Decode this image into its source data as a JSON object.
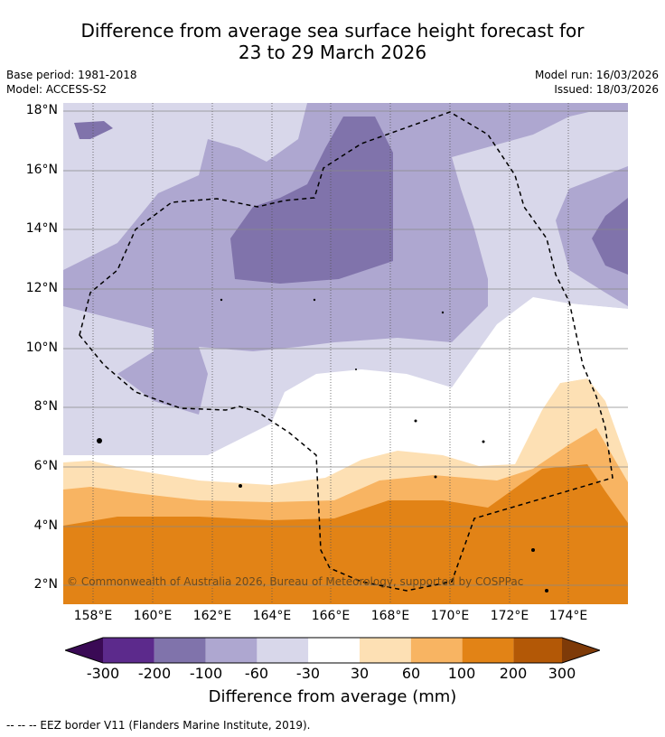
{
  "header": {
    "title_line1": "Difference from average sea surface height forecast for",
    "title_line2": "23 to 29 March 2026"
  },
  "meta": {
    "base_period": "Base period: 1981-2018",
    "model": "Model: ACCESS-S2",
    "model_run": "Model run: 16/03/2026",
    "issued": "Issued: 18/03/2026"
  },
  "map": {
    "copyright": "© Commonwealth of Australia 2026, Bureau of Meteorology, supported by COSPPac",
    "lat_labels": [
      "18°N",
      "16°N",
      "14°N",
      "12°N",
      "10°N",
      "8°N",
      "6°N",
      "4°N",
      "2°N"
    ],
    "lon_labels": [
      "158°E",
      "160°E",
      "162°E",
      "164°E",
      "166°E",
      "168°E",
      "170°E",
      "172°E",
      "174°E"
    ]
  },
  "colorbar": {
    "title": "Difference from average (mm)",
    "ticks": [
      "-300",
      "-200",
      "-100",
      "-60",
      "-30",
      "30",
      "60",
      "100",
      "200",
      "300"
    ],
    "colors": {
      "lt300": "#3a0a55",
      "m300_200": "#5c2a8c",
      "m200_100": "#8073ab",
      "m100_60": "#aea7d0",
      "m60_30": "#d8d7ea",
      "m30_30": "#ffffff",
      "p30_60": "#fde0b4",
      "p60_100": "#f8b462",
      "p100_200": "#e28316",
      "p200_300": "#b35806",
      "gt300": "#7e3a08"
    }
  },
  "legend": {
    "eez": "--  --  -- EEZ border V11 (Flanders Marine Institute, 2019)."
  }
}
